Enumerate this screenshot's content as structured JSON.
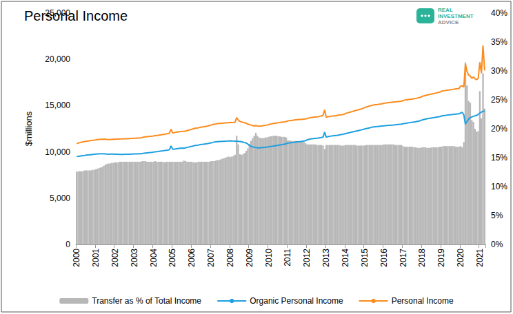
{
  "chart_data": {
    "type": "bar",
    "title": "Personal Income",
    "annotations": [
      "REAL",
      "INVESTMENT",
      "ADVICE"
    ],
    "y_label": "$millions",
    "legend": "bottom",
    "grid": false,
    "ylim": [
      0,
      25000
    ],
    "yticks": [
      0,
      {
        "value": 5000,
        "label": "5,000"
      },
      {
        "value": 10000,
        "label": "10,000"
      },
      {
        "value": 15000,
        "label": "15,000"
      },
      {
        "value": 20000,
        "label": "20,000"
      },
      {
        "value": 25000,
        "label": "25,000"
      }
    ],
    "y2lim": [
      0,
      40
    ],
    "y2ticks": [
      {
        "value": 0,
        "label": "0%"
      },
      {
        "value": 5,
        "label": "5%"
      },
      {
        "value": 10,
        "label": "10%"
      },
      {
        "value": 15,
        "label": "15%"
      },
      {
        "value": 20,
        "label": "20%"
      },
      {
        "value": 25,
        "label": "25%"
      },
      {
        "value": 30,
        "label": "30%"
      },
      {
        "value": 35,
        "label": "35%"
      },
      {
        "value": 40,
        "label": "40%"
      }
    ],
    "categories": [
      "2000",
      null,
      null,
      null,
      null,
      null,
      null,
      null,
      null,
      null,
      null,
      null,
      "2001",
      null,
      null,
      null,
      null,
      null,
      null,
      null,
      null,
      null,
      null,
      null,
      "2002",
      null,
      null,
      null,
      null,
      null,
      null,
      null,
      null,
      null,
      null,
      null,
      "2003",
      null,
      null,
      null,
      null,
      null,
      null,
      null,
      null,
      null,
      null,
      null,
      "2004",
      null,
      null,
      null,
      null,
      null,
      null,
      null,
      null,
      null,
      null,
      null,
      "2005",
      null,
      null,
      null,
      null,
      null,
      null,
      null,
      null,
      null,
      null,
      null,
      "2006",
      null,
      null,
      null,
      null,
      null,
      null,
      null,
      null,
      null,
      null,
      null,
      "2007",
      null,
      null,
      null,
      null,
      null,
      null,
      null,
      null,
      null,
      null,
      null,
      "2008",
      null,
      null,
      null,
      null,
      null,
      null,
      null,
      null,
      null,
      null,
      null,
      "2009",
      null,
      null,
      null,
      null,
      null,
      null,
      null,
      null,
      null,
      null,
      null,
      "2010",
      null,
      null,
      null,
      null,
      null,
      null,
      null,
      null,
      null,
      null,
      null,
      "2011",
      null,
      null,
      null,
      null,
      null,
      null,
      null,
      null,
      null,
      null,
      null,
      "2012",
      null,
      null,
      null,
      null,
      null,
      null,
      null,
      null,
      null,
      null,
      null,
      "2013",
      null,
      null,
      null,
      null,
      null,
      null,
      null,
      null,
      null,
      null,
      null,
      "2014",
      null,
      null,
      null,
      null,
      null,
      null,
      null,
      null,
      null,
      null,
      null,
      "2015",
      null,
      null,
      null,
      null,
      null,
      null,
      null,
      null,
      null,
      null,
      null,
      "2016",
      null,
      null,
      null,
      null,
      null,
      null,
      null,
      null,
      null,
      null,
      null,
      "2017",
      null,
      null,
      null,
      null,
      null,
      null,
      null,
      null,
      null,
      null,
      null,
      "2018",
      null,
      null,
      null,
      null,
      null,
      null,
      null,
      null,
      null,
      null,
      null,
      "2019",
      null,
      null,
      null,
      null,
      null,
      null,
      null,
      null,
      null,
      null,
      null,
      "2020",
      null,
      null,
      null,
      null,
      null,
      null,
      null,
      null,
      null,
      null,
      null,
      "2021",
      null,
      null,
      null
    ],
    "series": [
      {
        "name": "Transfer as % of Total Income",
        "type": "bar",
        "axis": "y2",
        "color": "#b7b7b7",
        "values": [
          12.6,
          12.6,
          12.7,
          12.6,
          12.7,
          12.8,
          12.8,
          12.8,
          12.8,
          12.8,
          12.9,
          12.9,
          13.0,
          13.1,
          13.2,
          13.3,
          13.4,
          13.6,
          13.8,
          13.9,
          14.0,
          14.0,
          14.1,
          14.1,
          14.2,
          14.2,
          14.2,
          14.3,
          14.3,
          14.3,
          14.3,
          14.3,
          14.3,
          14.3,
          14.3,
          14.3,
          14.3,
          14.3,
          14.3,
          14.3,
          14.3,
          14.4,
          14.4,
          14.4,
          14.3,
          14.3,
          14.3,
          14.3,
          14.3,
          14.4,
          14.3,
          14.3,
          14.3,
          14.3,
          14.3,
          14.2,
          14.3,
          14.3,
          14.3,
          14.3,
          14.3,
          14.3,
          14.3,
          14.3,
          14.3,
          14.3,
          14.3,
          14.5,
          14.4,
          14.3,
          14.3,
          14.3,
          14.3,
          14.2,
          14.2,
          14.2,
          14.3,
          14.3,
          14.3,
          14.3,
          14.3,
          14.3,
          14.3,
          14.3,
          14.4,
          14.4,
          14.4,
          14.5,
          14.6,
          14.6,
          14.7,
          14.8,
          14.9,
          15.0,
          15.1,
          15.2,
          15.1,
          15.2,
          15.3,
          15.5,
          18.8,
          17.3,
          15.6,
          15.5,
          15.6,
          15.8,
          16.2,
          16.6,
          17.4,
          17.9,
          18.4,
          18.8,
          19.3,
          18.8,
          18.5,
          18.4,
          18.4,
          18.4,
          18.5,
          18.5,
          18.6,
          18.7,
          18.7,
          18.8,
          18.8,
          18.8,
          18.7,
          18.7,
          18.6,
          18.6,
          18.6,
          18.5,
          18.0,
          18.0,
          17.9,
          17.9,
          17.9,
          17.9,
          17.9,
          17.8,
          17.8,
          17.8,
          17.7,
          17.5,
          17.3,
          17.3,
          17.3,
          17.3,
          17.3,
          17.3,
          17.2,
          17.2,
          17.2,
          17.2,
          17.1,
          16.5,
          17.2,
          17.2,
          17.2,
          17.2,
          17.2,
          17.2,
          17.2,
          17.2,
          17.2,
          17.1,
          17.1,
          17.1,
          17.2,
          17.2,
          17.2,
          17.2,
          17.2,
          17.2,
          17.2,
          17.1,
          17.1,
          17.1,
          17.1,
          17.1,
          17.1,
          17.2,
          17.2,
          17.2,
          17.2,
          17.2,
          17.2,
          17.2,
          17.2,
          17.2,
          17.2,
          17.2,
          17.3,
          17.3,
          17.3,
          17.3,
          17.3,
          17.3,
          17.3,
          17.2,
          17.2,
          17.2,
          17.2,
          17.2,
          17.0,
          16.9,
          16.9,
          16.9,
          16.9,
          16.9,
          16.9,
          16.8,
          16.8,
          16.7,
          16.7,
          16.7,
          16.8,
          16.8,
          16.8,
          16.7,
          16.7,
          16.7,
          16.8,
          16.8,
          16.8,
          16.8,
          16.8,
          16.9,
          16.9,
          17.0,
          17.0,
          17.0,
          17.0,
          17.0,
          17.0,
          17.0,
          17.0,
          16.9,
          16.9,
          16.9,
          17.0,
          16.8,
          17.7,
          31.5,
          27.5,
          24.8,
          24.5,
          21.5,
          21.2,
          20.0,
          19.5,
          19.6,
          26.5,
          21.8,
          29.6,
          23.5
        ]
      },
      {
        "name": "Organic Personal Income",
        "type": "line",
        "color": "#1d9fe0",
        "values": [
          9500,
          9520,
          9550,
          9580,
          9600,
          9620,
          9650,
          9670,
          9690,
          9700,
          9720,
          9740,
          9760,
          9780,
          9790,
          9800,
          9800,
          9790,
          9780,
          9770,
          9750,
          9760,
          9760,
          9770,
          9750,
          9740,
          9740,
          9730,
          9730,
          9730,
          9740,
          9740,
          9750,
          9750,
          9760,
          9770,
          9780,
          9780,
          9790,
          9800,
          9810,
          9830,
          9850,
          9870,
          9890,
          9910,
          9930,
          9950,
          9980,
          10000,
          10030,
          10050,
          10080,
          10100,
          10120,
          10150,
          10170,
          10200,
          10240,
          10650,
          10280,
          10300,
          10330,
          10360,
          10380,
          10400,
          10420,
          10390,
          10440,
          10480,
          10520,
          10560,
          10600,
          10650,
          10700,
          10720,
          10740,
          10780,
          10800,
          10820,
          10850,
          10880,
          10900,
          10940,
          10980,
          11020,
          11060,
          11080,
          11100,
          11120,
          11130,
          11140,
          11150,
          11160,
          11170,
          11180,
          11190,
          11180,
          11170,
          11160,
          11150,
          11140,
          11130,
          11100,
          11050,
          11000,
          10950,
          10850,
          10700,
          10600,
          10550,
          10500,
          10480,
          10450,
          10420,
          10450,
          10470,
          10480,
          10500,
          10520,
          10550,
          10580,
          10600,
          10630,
          10660,
          10690,
          10720,
          10750,
          10780,
          10810,
          10840,
          10880,
          10950,
          10980,
          11000,
          11020,
          11040,
          11060,
          11080,
          11100,
          11120,
          11150,
          11180,
          11200,
          11300,
          11350,
          11400,
          11420,
          11440,
          11460,
          11480,
          11500,
          11530,
          11560,
          11600,
          12150,
          11600,
          11650,
          11680,
          11710,
          11740,
          11760,
          11780,
          11800,
          11830,
          11860,
          11890,
          11920,
          11980,
          12020,
          12060,
          12100,
          12140,
          12180,
          12220,
          12260,
          12300,
          12340,
          12380,
          12420,
          12480,
          12520,
          12560,
          12600,
          12640,
          12680,
          12700,
          12720,
          12740,
          12760,
          12780,
          12800,
          12820,
          12840,
          12860,
          12870,
          12880,
          12890,
          12900,
          12920,
          12940,
          12960,
          12980,
          13000,
          13040,
          13080,
          13100,
          13130,
          13160,
          13180,
          13200,
          13230,
          13260,
          13300,
          13340,
          13380,
          13450,
          13500,
          13540,
          13580,
          13610,
          13640,
          13670,
          13700,
          13730,
          13760,
          13790,
          13820,
          13880,
          13920,
          13940,
          13960,
          13980,
          14000,
          14020,
          14040,
          14060,
          14080,
          14100,
          14120,
          14200,
          14280,
          14000,
          13000,
          13300,
          13550,
          13700,
          13780,
          13850,
          13900,
          13950,
          14050,
          14200,
          14300,
          14400,
          14400
        ]
      },
      {
        "name": "Personal Income",
        "type": "line",
        "color": "#fb8c1d",
        "values": [
          10900,
          10950,
          11000,
          11050,
          11080,
          11120,
          11150,
          11180,
          11200,
          11230,
          11250,
          11270,
          11300,
          11330,
          11350,
          11360,
          11370,
          11380,
          11360,
          11340,
          11330,
          11340,
          11350,
          11360,
          11370,
          11380,
          11390,
          11400,
          11400,
          11410,
          11420,
          11420,
          11430,
          11440,
          11450,
          11460,
          11470,
          11480,
          11490,
          11500,
          11520,
          11560,
          11600,
          11620,
          11640,
          11660,
          11680,
          11700,
          11720,
          11750,
          11780,
          11800,
          11830,
          11850,
          11880,
          11910,
          11940,
          11980,
          12020,
          12450,
          12050,
          12080,
          12120,
          12150,
          12180,
          12200,
          12230,
          12200,
          12250,
          12300,
          12350,
          12400,
          12450,
          12500,
          12550,
          12580,
          12600,
          12650,
          12680,
          12700,
          12730,
          12760,
          12800,
          12850,
          12900,
          12950,
          13000,
          13020,
          13050,
          13070,
          13080,
          13100,
          13120,
          13140,
          13150,
          13160,
          13180,
          13170,
          13180,
          13200,
          13700,
          13450,
          13300,
          13250,
          13200,
          13150,
          13100,
          13000,
          12950,
          12900,
          12850,
          12800,
          12850,
          12800,
          12780,
          12800,
          12820,
          12850,
          12880,
          12900,
          12950,
          13000,
          13030,
          13070,
          13100,
          13130,
          13150,
          13170,
          13200,
          13230,
          13250,
          13280,
          13350,
          13380,
          13400,
          13420,
          13440,
          13460,
          13480,
          13500,
          13500,
          13520,
          13540,
          13560,
          13600,
          13650,
          13700,
          13720,
          13740,
          13760,
          13780,
          13800,
          13850,
          13900,
          13950,
          14550,
          13750,
          13800,
          13820,
          13850,
          13870,
          13900,
          13900,
          13950,
          13980,
          14000,
          14030,
          14060,
          14150,
          14200,
          14250,
          14300,
          14350,
          14400,
          14450,
          14500,
          14550,
          14600,
          14650,
          14700,
          14800,
          14850,
          14900,
          14950,
          15000,
          15050,
          15080,
          15100,
          15120,
          15150,
          15170,
          15200,
          15250,
          15280,
          15300,
          15320,
          15340,
          15360,
          15380,
          15400,
          15420,
          15440,
          15460,
          15480,
          15550,
          15600,
          15620,
          15650,
          15680,
          15700,
          15720,
          15750,
          15780,
          15820,
          15860,
          15900,
          16000,
          16050,
          16100,
          16150,
          16180,
          16220,
          16260,
          16300,
          16340,
          16380,
          16420,
          16460,
          16550,
          16600,
          16620,
          16650,
          16680,
          16700,
          16730,
          16760,
          16780,
          16810,
          16830,
          16860,
          17100,
          17150,
          17000,
          19500,
          18700,
          18300,
          18200,
          17950,
          18100,
          17900,
          17800,
          17950,
          19700,
          18500,
          21500,
          18800
        ]
      }
    ]
  }
}
